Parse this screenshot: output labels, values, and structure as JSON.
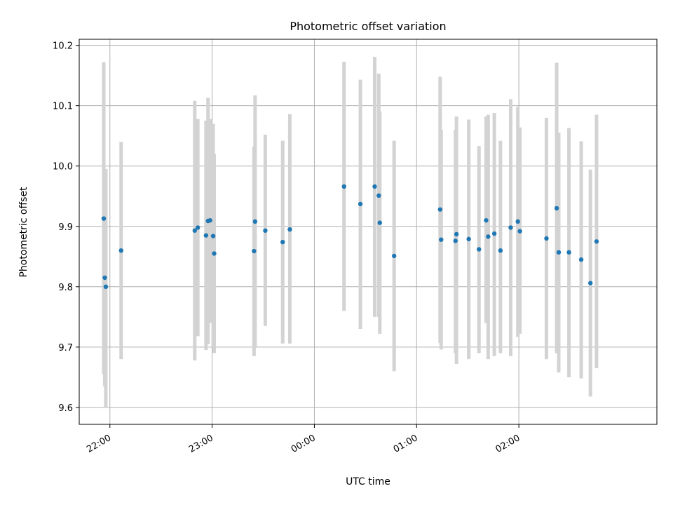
{
  "chart_data": {
    "type": "scatter",
    "title": "Photometric offset variation",
    "xlabel": "UTC time",
    "ylabel": "Photometric offset",
    "grid": true,
    "x_unit": "UTC time (hours past midnight; 22:00 shown as -2)",
    "xlim": [
      -2.3,
      3.35
    ],
    "ylim": [
      9.572,
      10.21
    ],
    "x_ticks": [
      -2,
      -1,
      0,
      1,
      2
    ],
    "x_tick_labels": [
      "22:00",
      "23:00",
      "00:00",
      "01:00",
      "02:00"
    ],
    "y_ticks": [
      9.6,
      9.7,
      9.8,
      9.9,
      10.0,
      10.1,
      10.2
    ],
    "y_tick_labels": [
      "9.6",
      "9.7",
      "9.8",
      "9.9",
      "10.0",
      "10.1",
      "10.2"
    ],
    "series": [
      {
        "points": [
          {
            "x": -2.06,
            "y": 9.913,
            "lo": 9.655,
            "hi": 10.172
          },
          {
            "x": -2.05,
            "y": 9.815,
            "lo": 9.635,
            "hi": 9.995
          },
          {
            "x": -2.04,
            "y": 9.8,
            "lo": 9.6,
            "hi": 9.995
          },
          {
            "x": -1.89,
            "y": 9.86,
            "lo": 9.68,
            "hi": 10.04
          },
          {
            "x": -1.17,
            "y": 9.893,
            "lo": 9.678,
            "hi": 10.108
          },
          {
            "x": -1.14,
            "y": 9.898,
            "lo": 9.718,
            "hi": 10.078
          },
          {
            "x": -1.06,
            "y": 9.885,
            "lo": 9.695,
            "hi": 10.075
          },
          {
            "x": -1.04,
            "y": 9.909,
            "lo": 9.705,
            "hi": 10.113
          },
          {
            "x": -1.02,
            "y": 9.91,
            "lo": 9.74,
            "hi": 10.078
          },
          {
            "x": -0.99,
            "y": 9.884,
            "lo": 9.7,
            "hi": 10.07
          },
          {
            "x": -0.98,
            "y": 9.855,
            "lo": 9.69,
            "hi": 10.02
          },
          {
            "x": -0.59,
            "y": 9.859,
            "lo": 9.685,
            "hi": 10.032
          },
          {
            "x": -0.58,
            "y": 9.908,
            "lo": 9.7,
            "hi": 10.117
          },
          {
            "x": -0.48,
            "y": 9.893,
            "lo": 9.735,
            "hi": 10.052
          },
          {
            "x": -0.31,
            "y": 9.874,
            "lo": 9.706,
            "hi": 10.042
          },
          {
            "x": -0.24,
            "y": 9.895,
            "lo": 9.706,
            "hi": 10.086
          },
          {
            "x": 0.29,
            "y": 9.966,
            "lo": 9.76,
            "hi": 10.173
          },
          {
            "x": 0.45,
            "y": 9.937,
            "lo": 9.73,
            "hi": 10.143
          },
          {
            "x": 0.59,
            "y": 9.966,
            "lo": 9.75,
            "hi": 10.181
          },
          {
            "x": 0.63,
            "y": 9.951,
            "lo": 9.75,
            "hi": 10.153
          },
          {
            "x": 0.64,
            "y": 9.906,
            "lo": 9.722,
            "hi": 10.09
          },
          {
            "x": 0.78,
            "y": 9.851,
            "lo": 9.66,
            "hi": 10.042
          },
          {
            "x": 1.23,
            "y": 9.928,
            "lo": 9.707,
            "hi": 10.148
          },
          {
            "x": 1.24,
            "y": 9.878,
            "lo": 9.696,
            "hi": 10.06
          },
          {
            "x": 1.38,
            "y": 9.876,
            "lo": 9.69,
            "hi": 10.06
          },
          {
            "x": 1.39,
            "y": 9.887,
            "lo": 9.672,
            "hi": 10.082
          },
          {
            "x": 1.51,
            "y": 9.879,
            "lo": 9.68,
            "hi": 10.077
          },
          {
            "x": 1.61,
            "y": 9.862,
            "lo": 9.69,
            "hi": 10.033
          },
          {
            "x": 1.68,
            "y": 9.91,
            "lo": 9.74,
            "hi": 10.082
          },
          {
            "x": 1.7,
            "y": 9.883,
            "lo": 9.68,
            "hi": 10.085
          },
          {
            "x": 1.76,
            "y": 9.888,
            "lo": 9.685,
            "hi": 10.088
          },
          {
            "x": 1.82,
            "y": 9.86,
            "lo": 9.69,
            "hi": 10.042
          },
          {
            "x": 1.92,
            "y": 9.898,
            "lo": 9.685,
            "hi": 10.111
          },
          {
            "x": 1.99,
            "y": 9.908,
            "lo": 9.717,
            "hi": 10.098
          },
          {
            "x": 2.01,
            "y": 9.892,
            "lo": 9.722,
            "hi": 10.064
          },
          {
            "x": 2.27,
            "y": 9.88,
            "lo": 9.68,
            "hi": 10.08
          },
          {
            "x": 2.37,
            "y": 9.93,
            "lo": 9.69,
            "hi": 10.171
          },
          {
            "x": 2.39,
            "y": 9.857,
            "lo": 9.658,
            "hi": 10.055
          },
          {
            "x": 2.49,
            "y": 9.857,
            "lo": 9.65,
            "hi": 10.063
          },
          {
            "x": 2.61,
            "y": 9.845,
            "lo": 9.648,
            "hi": 10.041
          },
          {
            "x": 2.7,
            "y": 9.806,
            "lo": 9.618,
            "hi": 9.994
          },
          {
            "x": 2.76,
            "y": 9.875,
            "lo": 9.665,
            "hi": 10.085
          }
        ]
      }
    ]
  }
}
